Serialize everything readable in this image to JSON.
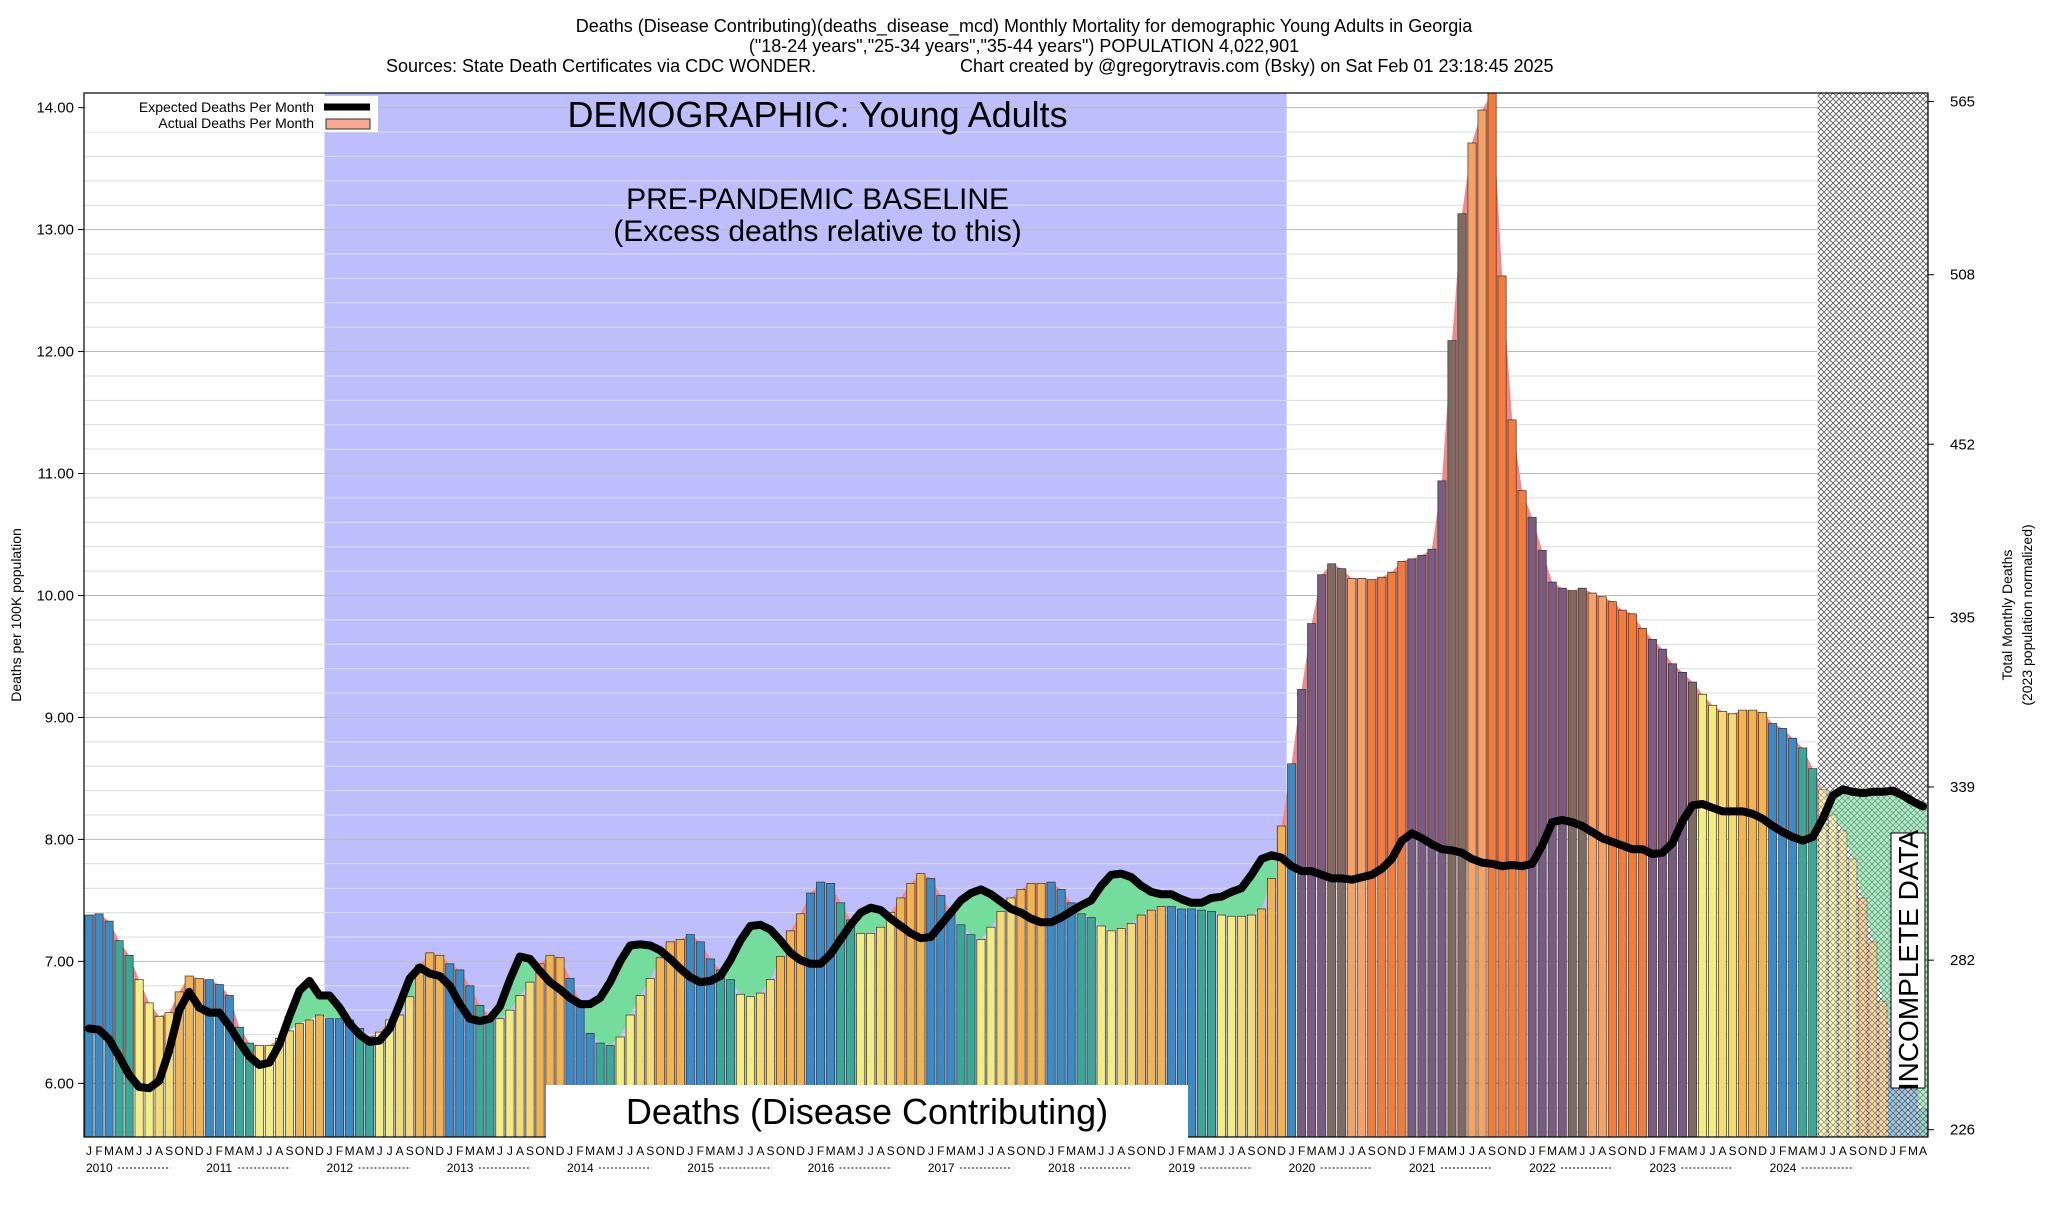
{
  "chart_data": {
    "type": "bar",
    "title_lines": [
      "Deaths (Disease Contributing)(deaths_disease_mcd) Monthly Mortality for demographic Young Adults in Georgia",
      "(\"18-24 years\",\"25-34 years\",\"35-44 years\") POPULATION 4,022,901"
    ],
    "sources_text": "Sources: State Death Certificates via CDC WONDER.",
    "credit_text": "Chart created by @gregorytravis.com (Bsky) on Sat Feb 01 23:18:45 2025",
    "ylabel": "Deaths per 100K population",
    "ylabel_right_lines": [
      "Total Monthly Deaths",
      "(2023 population normalized)"
    ],
    "ylim": [
      5.56,
      14.12
    ],
    "y_ticks": [
      "6.00",
      "7.00",
      "8.00",
      "9.00",
      "10.00",
      "11.00",
      "12.00",
      "13.00",
      "14.00"
    ],
    "y2_ticks": [
      {
        "label": "226",
        "value": 5.62
      },
      {
        "label": "282",
        "value": 7.01
      },
      {
        "label": "339",
        "value": 8.43
      },
      {
        "label": "395",
        "value": 9.82
      },
      {
        "label": "452",
        "value": 11.24
      },
      {
        "label": "508",
        "value": 12.63
      },
      {
        "label": "565",
        "value": 14.05
      }
    ],
    "month_letters": [
      "J",
      "F",
      "M",
      "A",
      "M",
      "J",
      "J",
      "A",
      "S",
      "O",
      "N",
      "D"
    ],
    "years": [
      "2010",
      "2011",
      "2012",
      "2013",
      "2014",
      "2015",
      "2016",
      "2017",
      "2018",
      "2019",
      "2020",
      "2021",
      "2022",
      "2023",
      "2024"
    ],
    "legend": {
      "position": "top-left",
      "entries": [
        "Expected Deaths Per Month",
        "Actual Deaths Per Month"
      ]
    },
    "annotations": {
      "demographic": "DEMOGRAPHIC: Young Adults",
      "baseline_lines": [
        "PRE-PANDEMIC BASELINE",
        "(Excess deaths relative to this)"
      ],
      "cause": "Deaths (Disease Contributing)",
      "incomplete": "INCOMPLETE DATA"
    },
    "baseline_period": {
      "start": "2012-01",
      "end": "2019-12"
    },
    "incomplete_period": {
      "start": "2024-06",
      "end": "2024-12"
    },
    "series": [
      {
        "name": "Actual Deaths Per Month",
        "x_start": "2010-01",
        "values": [
          7.38,
          7.39,
          7.33,
          7.17,
          7.05,
          6.85,
          6.66,
          6.55,
          6.58,
          6.75,
          6.88,
          6.86,
          6.85,
          6.81,
          6.72,
          6.46,
          6.33,
          6.31,
          6.31,
          6.37,
          6.43,
          6.49,
          6.52,
          6.56,
          6.53,
          6.53,
          6.52,
          6.45,
          6.38,
          6.42,
          6.52,
          6.56,
          6.71,
          6.97,
          7.07,
          7.05,
          6.98,
          6.93,
          6.8,
          6.64,
          6.55,
          6.53,
          6.6,
          6.72,
          6.83,
          6.98,
          7.05,
          7.03,
          6.86,
          6.67,
          6.41,
          6.33,
          6.31,
          6.38,
          6.56,
          6.72,
          6.86,
          7.03,
          7.16,
          7.18,
          7.22,
          7.16,
          7.02,
          6.93,
          6.85,
          6.73,
          6.71,
          6.74,
          6.85,
          7.04,
          7.25,
          7.39,
          7.56,
          7.65,
          7.64,
          7.48,
          7.34,
          7.23,
          7.23,
          7.28,
          7.4,
          7.52,
          7.64,
          7.72,
          7.68,
          7.54,
          7.41,
          7.3,
          7.22,
          7.18,
          7.28,
          7.41,
          7.52,
          7.59,
          7.64,
          7.64,
          7.65,
          7.59,
          7.48,
          7.39,
          7.36,
          7.29,
          7.25,
          7.27,
          7.31,
          7.38,
          7.42,
          7.45,
          7.45,
          7.43,
          7.43,
          7.42,
          7.41,
          7.38,
          7.37,
          7.37,
          7.38,
          7.43,
          7.68,
          8.11,
          8.62,
          9.23,
          9.77,
          10.17,
          10.26,
          10.22,
          10.14,
          10.14,
          10.13,
          10.15,
          10.19,
          10.28,
          10.3,
          10.33,
          10.38,
          10.94,
          12.09,
          13.13,
          13.71,
          13.98,
          14.12,
          12.62,
          11.44,
          10.86,
          10.64,
          10.37,
          10.11,
          10.06,
          10.04,
          10.06,
          10.02,
          9.99,
          9.95,
          9.88,
          9.85,
          9.73,
          9.64,
          9.56,
          9.44,
          9.37,
          9.29,
          9.19,
          9.1,
          9.05,
          9.03,
          9.06,
          9.06,
          9.04,
          8.95,
          8.91,
          8.83,
          8.75,
          8.58,
          8.41,
          8.2,
          8.07,
          7.84,
          7.52,
          7.16,
          6.67,
          6.36,
          6.18,
          5.95,
          5.79
        ]
      },
      {
        "name": "Expected Deaths Per Month",
        "x_start": "2010-01",
        "values": [
          6.45,
          6.44,
          6.36,
          6.22,
          6.07,
          5.97,
          5.96,
          6.02,
          6.27,
          6.6,
          6.75,
          6.62,
          6.58,
          6.58,
          6.47,
          6.34,
          6.22,
          6.15,
          6.17,
          6.32,
          6.55,
          6.76,
          6.84,
          6.72,
          6.72,
          6.62,
          6.49,
          6.4,
          6.34,
          6.35,
          6.45,
          6.65,
          6.86,
          6.95,
          6.9,
          6.88,
          6.8,
          6.65,
          6.53,
          6.51,
          6.53,
          6.63,
          6.85,
          7.04,
          7.02,
          6.92,
          6.83,
          6.77,
          6.7,
          6.65,
          6.65,
          6.7,
          6.83,
          7.0,
          7.13,
          7.14,
          7.13,
          7.09,
          7.02,
          6.94,
          6.87,
          6.83,
          6.84,
          6.88,
          7.01,
          7.17,
          7.29,
          7.3,
          7.26,
          7.17,
          7.07,
          7.01,
          6.98,
          6.98,
          7.06,
          7.18,
          7.3,
          7.4,
          7.44,
          7.42,
          7.35,
          7.29,
          7.23,
          7.19,
          7.2,
          7.3,
          7.4,
          7.5,
          7.56,
          7.59,
          7.55,
          7.49,
          7.43,
          7.4,
          7.35,
          7.32,
          7.32,
          7.36,
          7.41,
          7.46,
          7.5,
          7.62,
          7.71,
          7.72,
          7.69,
          7.62,
          7.57,
          7.55,
          7.55,
          7.51,
          7.48,
          7.48,
          7.52,
          7.53,
          7.57,
          7.6,
          7.71,
          7.84,
          7.87,
          7.85,
          7.78,
          7.74,
          7.74,
          7.71,
          7.68,
          7.68,
          7.67,
          7.69,
          7.71,
          7.76,
          7.84,
          7.99,
          8.05,
          8.01,
          7.96,
          7.92,
          7.91,
          7.89,
          7.84,
          7.81,
          7.8,
          7.78,
          7.79,
          7.78,
          7.8,
          7.95,
          8.14,
          8.16,
          8.14,
          8.11,
          8.06,
          8.01,
          7.98,
          7.95,
          7.92,
          7.92,
          7.88,
          7.89,
          7.97,
          8.15,
          8.28,
          8.29,
          8.26,
          8.23,
          8.23,
          8.23,
          8.21,
          8.17,
          8.11,
          8.06,
          8.02,
          7.99,
          8.02,
          8.17,
          8.36,
          8.41,
          8.39,
          8.38,
          8.39,
          8.39,
          8.4,
          8.36,
          8.31,
          8.27,
          8.21,
          8.18
        ]
      }
    ]
  }
}
